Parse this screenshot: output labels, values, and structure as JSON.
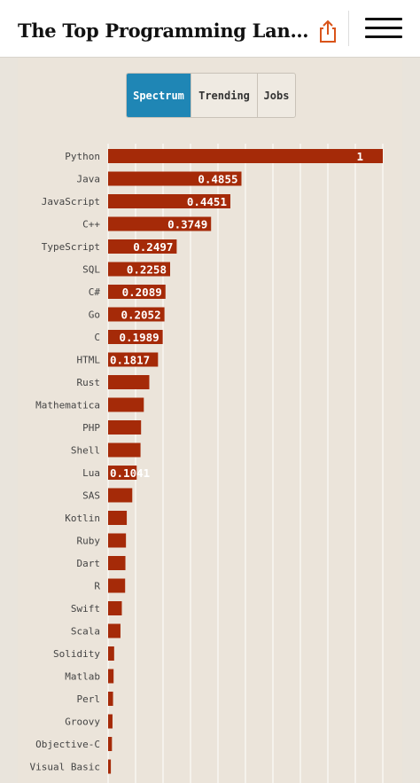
{
  "header": {
    "title": "The Top Programming Languag..."
  },
  "icons": {
    "share": "share-icon",
    "menu": "hamburger-menu-icon"
  },
  "tabs": [
    {
      "label": "Spectrum",
      "active": true
    },
    {
      "label": "Trending",
      "active": false
    },
    {
      "label": "Jobs",
      "active": false
    }
  ],
  "colors": {
    "bar": "#a52a08",
    "active_tab": "#1f86b5",
    "background": "#e9e4dc"
  },
  "chart_data": {
    "type": "bar",
    "orientation": "horizontal",
    "categories": [
      "Python",
      "Java",
      "JavaScript",
      "C++",
      "TypeScript",
      "SQL",
      "C#",
      "Go",
      "C",
      "HTML",
      "Rust",
      "Mathematica",
      "PHP",
      "Shell",
      "Lua",
      "SAS",
      "Kotlin",
      "Ruby",
      "Dart",
      "R",
      "Swift",
      "Scala",
      "Solidity",
      "Matlab",
      "Perl",
      "Groovy",
      "Objective-C",
      "Visual Basic"
    ],
    "values": [
      1,
      0.4855,
      0.4451,
      0.3749,
      0.2497,
      0.2258,
      0.2089,
      0.2052,
      0.1989,
      0.1817,
      0.15,
      0.13,
      0.12,
      0.118,
      0.1041,
      0.088,
      0.068,
      0.065,
      0.063,
      0.062,
      0.05,
      0.045,
      0.022,
      0.02,
      0.018,
      0.016,
      0.014,
      0.01
    ],
    "data_labels": [
      "1",
      "0.4855",
      "0.4451",
      "0.3749",
      "0.2497",
      "0.2258",
      "0.2089",
      "0.2052",
      "0.1989",
      "0.1817",
      "",
      "",
      "",
      "",
      "0.1041",
      "",
      "",
      "",
      "",
      "",
      "",
      "",
      "",
      "",
      "",
      "",
      "",
      ""
    ],
    "xlim": [
      0,
      1
    ],
    "grid": true
  }
}
